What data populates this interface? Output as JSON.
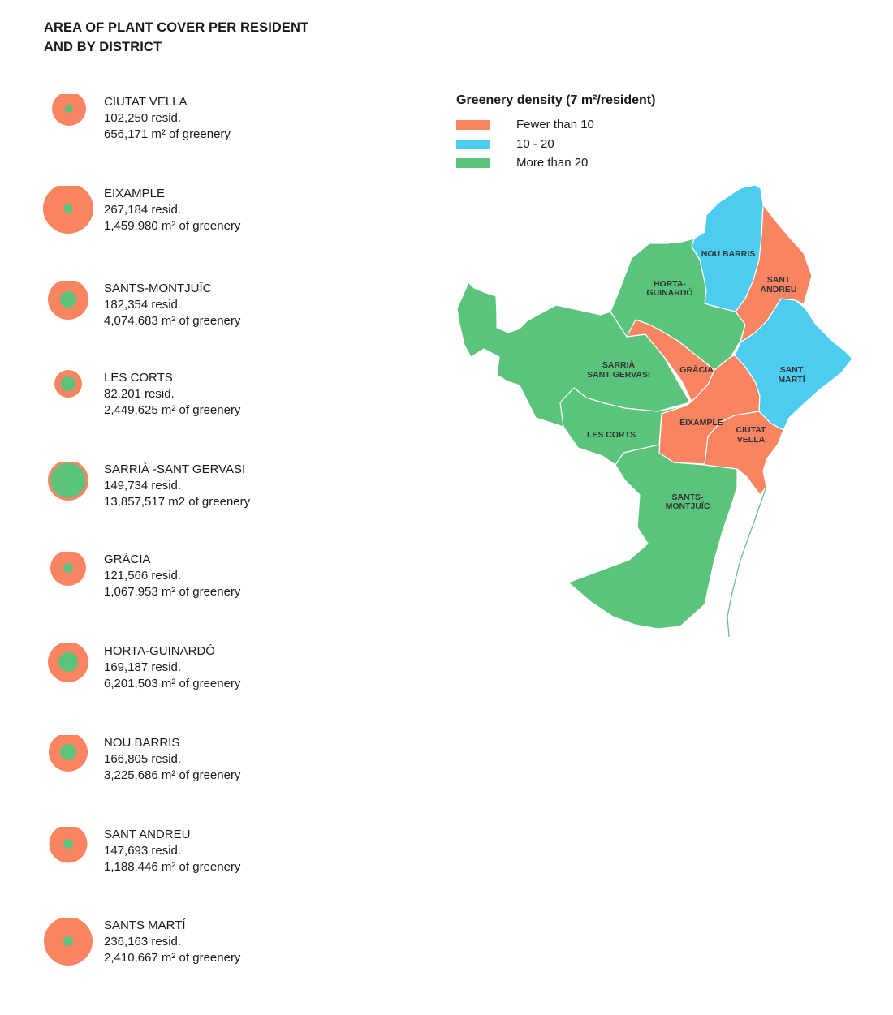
{
  "title_lines": [
    "AREA OF PLANT COVER PER RESIDENT",
    "AND BY DISTRICT"
  ],
  "colors": {
    "fewer_than_10": "#f88462",
    "between_10_20": "#4ccdf0",
    "more_than_20": "#5ac47c"
  },
  "districts": [
    {
      "name": "CIUTAT VELLA",
      "residents": "102,250 resid.",
      "greenery": "656,171 m² of greenery"
    },
    {
      "name": "EIXAMPLE",
      "residents": "267,184 resid.",
      "greenery": "1,459,980 m² of greenery"
    },
    {
      "name": "SANTS-MONTJUÏC",
      "residents": "182,354 resid.",
      "greenery": "4,074,683 m² of greenery"
    },
    {
      "name": "LES CORTS",
      "residents": "82,201 resid.",
      "greenery": "2,449,625 m² of greenery"
    },
    {
      "name": "SARRIÀ -SANT GERVASI",
      "residents": "149,734 resid.",
      "greenery": "13,857,517 m2 of greenery"
    },
    {
      "name": "GRÀCIA",
      "residents": "121,566 resid.",
      "greenery": "1,067,953 m² of greenery"
    },
    {
      "name": "HORTA-GUINARDÓ",
      "residents": "169,187 resid.",
      "greenery": "6,201,503 m² of greenery"
    },
    {
      "name": "NOU BARRIS",
      "residents": "166,805 resid.",
      "greenery": "3,225,686 m² of greenery"
    },
    {
      "name": "SANT ANDREU",
      "residents": "147,693 resid.",
      "greenery": "1,188,446 m² of greenery"
    },
    {
      "name": "SANTS MARTÍ",
      "residents": "236,163 resid.",
      "greenery": "2,410,667 m² of greenery"
    }
  ],
  "legend": {
    "title": "Greenery density (7 m²/resident)",
    "items": [
      "Fewer than 10",
      "10 - 20",
      "More than 20"
    ]
  },
  "map_labels": {
    "nou_barris": [
      "NOU BARRIS"
    ],
    "sant_andreu": [
      "SANT",
      "ANDREU"
    ],
    "horta_guinardo": [
      "HORTA-",
      "GUINARDÓ"
    ],
    "sarria": [
      "SARRIÀ",
      "SANT GERVASI"
    ],
    "gracia": [
      "GRÀCIA"
    ],
    "sant_marti": [
      "SANT",
      "MARTÍ"
    ],
    "eixample": [
      "EIXAMPLE"
    ],
    "ciutat_vella": [
      "CIUTAT",
      "VELLA"
    ],
    "les_corts": [
      "LES CORTS"
    ],
    "sants_montjuic": [
      "SANTS-",
      "MONTJUÏC"
    ]
  }
}
